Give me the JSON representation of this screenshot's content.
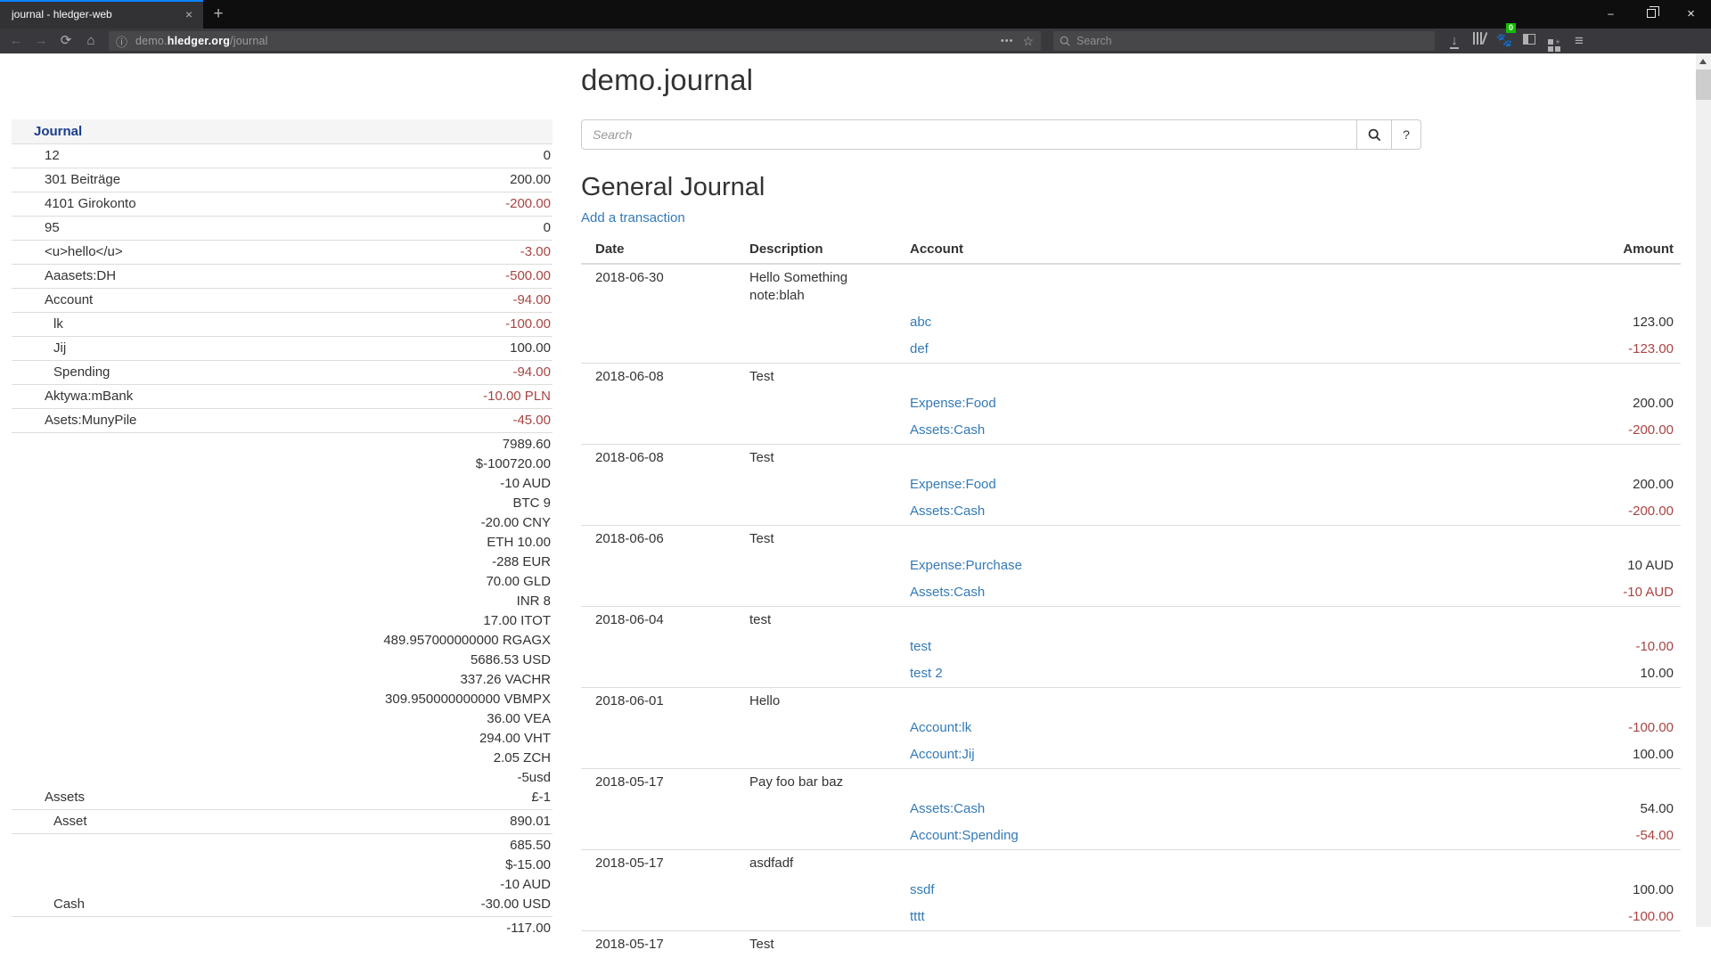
{
  "browser": {
    "tab_title": "journal - hledger-web",
    "icons": {
      "tab_close": "×",
      "new_tab": "+",
      "minimize": "–",
      "window_close": "×",
      "back": "←",
      "forward": "→",
      "reload": "⟳",
      "home": "⌂",
      "info": "ⓘ",
      "page_actions": "•••",
      "star": "☆",
      "menu": "≡",
      "download": "↓"
    },
    "url": {
      "subdomain": "demo.",
      "host": "hledger.org",
      "path": "/journal"
    },
    "search_placeholder": "Search",
    "extension_badge": "0"
  },
  "colors": {
    "link": "#337ab7",
    "negative": "#a94442",
    "sidebar_active": "#1b3e8c",
    "tab_accent": "#0a84ff"
  },
  "sidebar": {
    "title": "Journal",
    "rows": [
      {
        "name": "12",
        "indent": 1,
        "amounts": [
          {
            "text": "0",
            "neg": false
          }
        ]
      },
      {
        "name": "301 Beiträge",
        "indent": 1,
        "amounts": [
          {
            "text": "200.00",
            "neg": false
          }
        ]
      },
      {
        "name": "4101 Girokonto",
        "indent": 1,
        "amounts": [
          {
            "text": "-200.00",
            "neg": true
          }
        ]
      },
      {
        "name": "95",
        "indent": 1,
        "amounts": [
          {
            "text": "0",
            "neg": false
          }
        ]
      },
      {
        "name": "<u>hello</u>",
        "indent": 1,
        "amounts": [
          {
            "text": "-3.00",
            "neg": true
          }
        ]
      },
      {
        "name": "Aaasets:DH",
        "indent": 1,
        "amounts": [
          {
            "text": "-500.00",
            "neg": true
          }
        ]
      },
      {
        "name": "Account",
        "indent": 1,
        "amounts": [
          {
            "text": "-94.00",
            "neg": true
          }
        ]
      },
      {
        "name": "lk",
        "indent": 2,
        "amounts": [
          {
            "text": "-100.00",
            "neg": true
          }
        ]
      },
      {
        "name": "Jij",
        "indent": 2,
        "amounts": [
          {
            "text": "100.00",
            "neg": false
          }
        ]
      },
      {
        "name": "Spending",
        "indent": 2,
        "amounts": [
          {
            "text": "-94.00",
            "neg": true
          }
        ]
      },
      {
        "name": "Aktywa:mBank",
        "indent": 1,
        "amounts": [
          {
            "text": "-10.00 PLN",
            "neg": true
          }
        ]
      },
      {
        "name": "Asets:MunyPile",
        "indent": 1,
        "amounts": [
          {
            "text": "-45.00",
            "neg": true
          }
        ]
      },
      {
        "name": "Assets",
        "indent": 1,
        "amounts": [
          {
            "text": "7989.60",
            "neg": false
          },
          {
            "text": "$-100720.00",
            "neg": false
          },
          {
            "text": "-10 AUD",
            "neg": false
          },
          {
            "text": "BTC 9",
            "neg": false
          },
          {
            "text": "-20.00 CNY",
            "neg": false
          },
          {
            "text": "ETH 10.00",
            "neg": false
          },
          {
            "text": "-288 EUR",
            "neg": false
          },
          {
            "text": "70.00 GLD",
            "neg": false
          },
          {
            "text": "INR 8",
            "neg": false
          },
          {
            "text": "17.00 ITOT",
            "neg": false
          },
          {
            "text": "489.957000000000 RGAGX",
            "neg": false
          },
          {
            "text": "5686.53 USD",
            "neg": false
          },
          {
            "text": "337.26 VACHR",
            "neg": false
          },
          {
            "text": "309.950000000000 VBMPX",
            "neg": false
          },
          {
            "text": "36.00 VEA",
            "neg": false
          },
          {
            "text": "294.00 VHT",
            "neg": false
          },
          {
            "text": "2.05 ZCH",
            "neg": false
          },
          {
            "text": "-5usd",
            "neg": false
          },
          {
            "text": "£-1",
            "neg": false
          }
        ]
      },
      {
        "name": "Asset",
        "indent": 2,
        "amounts": [
          {
            "text": "890.01",
            "neg": false
          }
        ]
      },
      {
        "name": "Cash",
        "indent": 2,
        "amounts": [
          {
            "text": "685.50",
            "neg": false
          },
          {
            "text": "$-15.00",
            "neg": false
          },
          {
            "text": "-10 AUD",
            "neg": false
          },
          {
            "text": "-30.00 USD",
            "neg": false
          }
        ]
      },
      {
        "name": "",
        "indent": 2,
        "amounts": [
          {
            "text": "-117.00",
            "neg": false
          }
        ]
      }
    ]
  },
  "main": {
    "page_title": "demo.journal",
    "search": {
      "placeholder": "Search",
      "help_label": "?"
    },
    "section_title": "General Journal",
    "add_transaction_label": "Add a transaction",
    "table": {
      "headers": [
        "Date",
        "Description",
        "Account",
        "Amount"
      ]
    },
    "transactions": [
      {
        "date": "2018-06-30",
        "description": "Hello Something note:blah",
        "postings": [
          {
            "account": "abc",
            "amount": "123.00",
            "neg": false
          },
          {
            "account": "def",
            "amount": "-123.00",
            "neg": true
          }
        ]
      },
      {
        "date": "2018-06-08",
        "description": "Test",
        "postings": [
          {
            "account": "Expense:Food",
            "amount": "200.00",
            "neg": false
          },
          {
            "account": "Assets:Cash",
            "amount": "-200.00",
            "neg": true
          }
        ]
      },
      {
        "date": "2018-06-08",
        "description": "Test",
        "postings": [
          {
            "account": "Expense:Food",
            "amount": "200.00",
            "neg": false
          },
          {
            "account": "Assets:Cash",
            "amount": "-200.00",
            "neg": true
          }
        ]
      },
      {
        "date": "2018-06-06",
        "description": "Test",
        "postings": [
          {
            "account": "Expense:Purchase",
            "amount": "10 AUD",
            "neg": false
          },
          {
            "account": "Assets:Cash",
            "amount": "-10 AUD",
            "neg": true
          }
        ]
      },
      {
        "date": "2018-06-04",
        "description": "test",
        "postings": [
          {
            "account": "test",
            "amount": "-10.00",
            "neg": true
          },
          {
            "account": "test 2",
            "amount": "10.00",
            "neg": false
          }
        ]
      },
      {
        "date": "2018-06-01",
        "description": "Hello",
        "postings": [
          {
            "account": "Account:lk",
            "amount": "-100.00",
            "neg": true
          },
          {
            "account": "Account:Jij",
            "amount": "100.00",
            "neg": false
          }
        ]
      },
      {
        "date": "2018-05-17",
        "description": "Pay foo bar baz",
        "postings": [
          {
            "account": "Assets:Cash",
            "amount": "54.00",
            "neg": false
          },
          {
            "account": "Account:Spending",
            "amount": "-54.00",
            "neg": true
          }
        ]
      },
      {
        "date": "2018-05-17",
        "description": "asdfadf",
        "postings": [
          {
            "account": "ssdf",
            "amount": "100.00",
            "neg": false
          },
          {
            "account": "tttt",
            "amount": "-100.00",
            "neg": true
          }
        ]
      },
      {
        "date": "2018-05-17",
        "description": "Test",
        "postings": []
      }
    ]
  }
}
